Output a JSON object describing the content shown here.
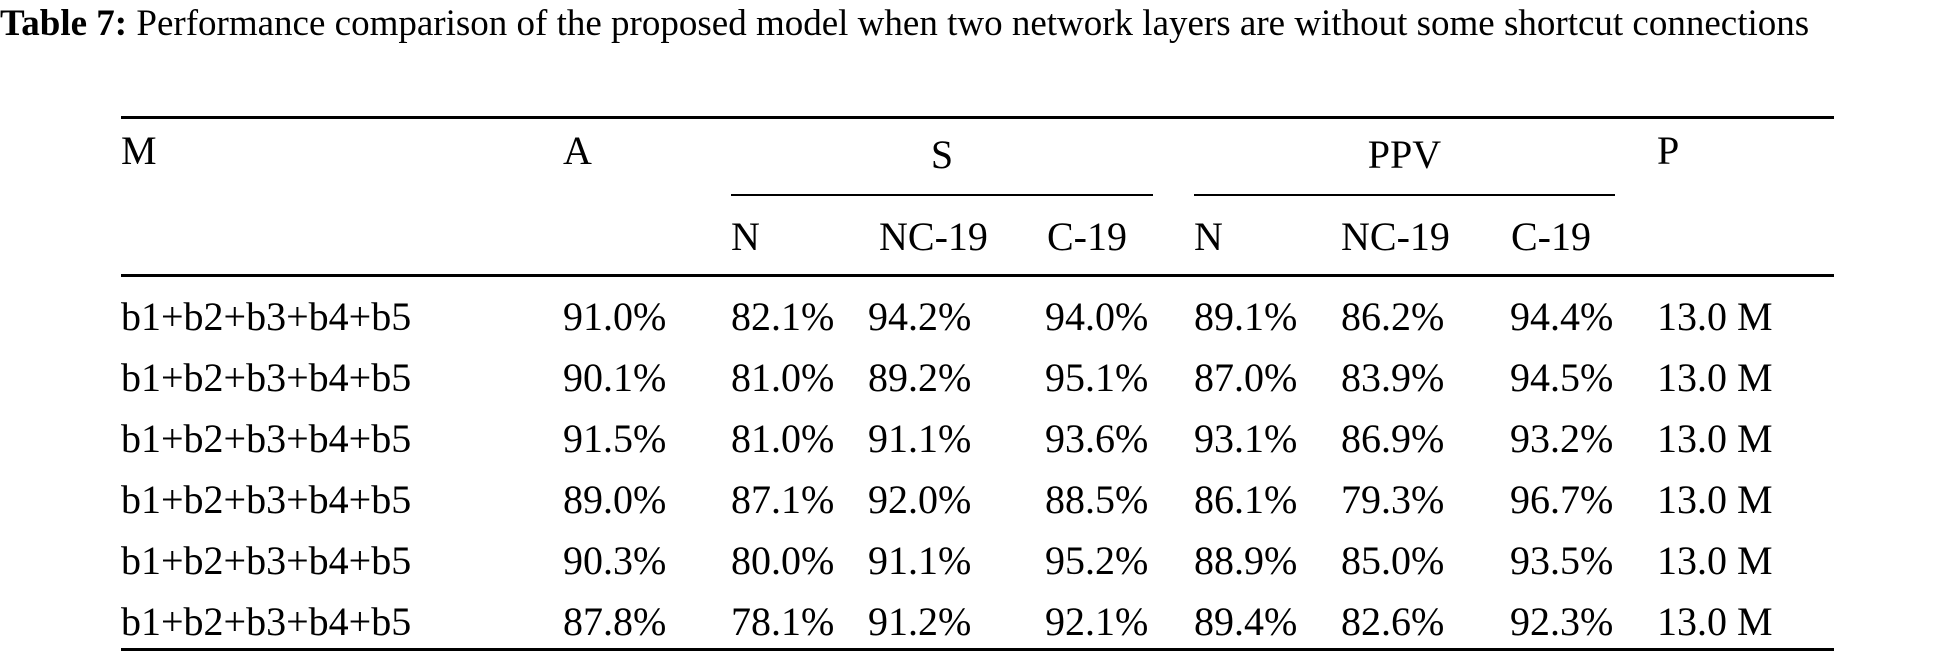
{
  "caption": {
    "label": "Table 7:",
    "text": " Performance comparison of the proposed model when two network layers are without some shortcut connections"
  },
  "header": {
    "model": "M",
    "accuracy": "A",
    "sensitivity_group": "S",
    "ppv_group": "PPV",
    "params": "P",
    "sub": [
      "N",
      "NC-19",
      "C-19",
      "N",
      "NC-19",
      "C-19"
    ]
  },
  "rows": [
    [
      "b1+b2+b3+b4+b5",
      "91.0%",
      "82.1%",
      "94.2%",
      "94.0%",
      "89.1%",
      "86.2%",
      "94.4%",
      "13.0 M"
    ],
    [
      "b1+b2+b3+b4+b5",
      "90.1%",
      "81.0%",
      "89.2%",
      "95.1%",
      "87.0%",
      "83.9%",
      "94.5%",
      "13.0 M"
    ],
    [
      "b1+b2+b3+b4+b5",
      "91.5%",
      "81.0%",
      "91.1%",
      "93.6%",
      "93.1%",
      "86.9%",
      "93.2%",
      "13.0 M"
    ],
    [
      "b1+b2+b3+b4+b5",
      "89.0%",
      "87.1%",
      "92.0%",
      "88.5%",
      "86.1%",
      "79.3%",
      "96.7%",
      "13.0 M"
    ],
    [
      "b1+b2+b3+b4+b5",
      "90.3%",
      "80.0%",
      "91.1%",
      "95.2%",
      "88.9%",
      "85.0%",
      "93.5%",
      "13.0 M"
    ],
    [
      "b1+b2+b3+b4+b5",
      "87.8%",
      "78.1%",
      "91.2%",
      "92.1%",
      "89.4%",
      "82.6%",
      "92.3%",
      "13.0 M"
    ]
  ]
}
